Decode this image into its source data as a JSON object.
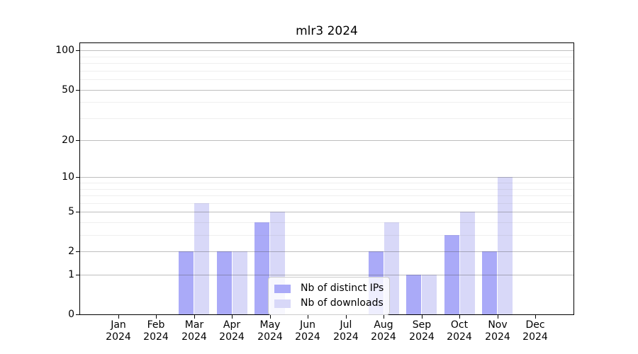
{
  "title": "mlr3 2024",
  "chart_data": {
    "type": "bar",
    "title": "mlr3 2024",
    "x_tick_labels": [
      {
        "line1": "Jan",
        "line2": "2024"
      },
      {
        "line1": "Feb",
        "line2": "2024"
      },
      {
        "line1": "Mar",
        "line2": "2024"
      },
      {
        "line1": "Apr",
        "line2": "2024"
      },
      {
        "line1": "May",
        "line2": "2024"
      },
      {
        "line1": "Jun",
        "line2": "2024"
      },
      {
        "line1": "Jul",
        "line2": "2024"
      },
      {
        "line1": "Aug",
        "line2": "2024"
      },
      {
        "line1": "Sep",
        "line2": "2024"
      },
      {
        "line1": "Oct",
        "line2": "2024"
      },
      {
        "line1": "Nov",
        "line2": "2024"
      },
      {
        "line1": "Dec",
        "line2": "2024"
      }
    ],
    "categories": [
      "Jan 2024",
      "Feb 2024",
      "Mar 2024",
      "Apr 2024",
      "May 2024",
      "Jun 2024",
      "Jul 2024",
      "Aug 2024",
      "Sep 2024",
      "Oct 2024",
      "Nov 2024",
      "Dec 2024"
    ],
    "series": [
      {
        "name": "Nb of distinct IPs",
        "color": "#aaaaf8",
        "values": [
          0,
          0,
          2,
          2,
          4,
          0,
          0,
          2,
          1,
          3,
          2,
          0
        ]
      },
      {
        "name": "Nb of downloads",
        "color": "#d8d8f8",
        "values": [
          0,
          0,
          6,
          2,
          5,
          0,
          0,
          4,
          1,
          5,
          10,
          0
        ]
      }
    ],
    "y_scale": "log10(1+y)",
    "y_max": 114,
    "y_ticks_major": [
      0,
      1,
      2,
      5,
      10,
      20,
      50,
      100
    ],
    "y_ticks_minor": [
      3,
      4,
      6,
      7,
      8,
      9,
      30,
      40,
      60,
      70,
      80,
      90
    ],
    "grid": true,
    "legend_position": "lower center inside plot",
    "colors": {
      "spine": "#000000",
      "grid_major": "#c6c6c6",
      "grid_minor": "#ebebeb",
      "background": "#ffffff",
      "legend_border": "#cccccc"
    }
  },
  "legend": {
    "entries": [
      {
        "label": "Nb of distinct IPs",
        "color": "#aaaaf8"
      },
      {
        "label": "Nb of downloads",
        "color": "#d8d8f8"
      }
    ]
  }
}
